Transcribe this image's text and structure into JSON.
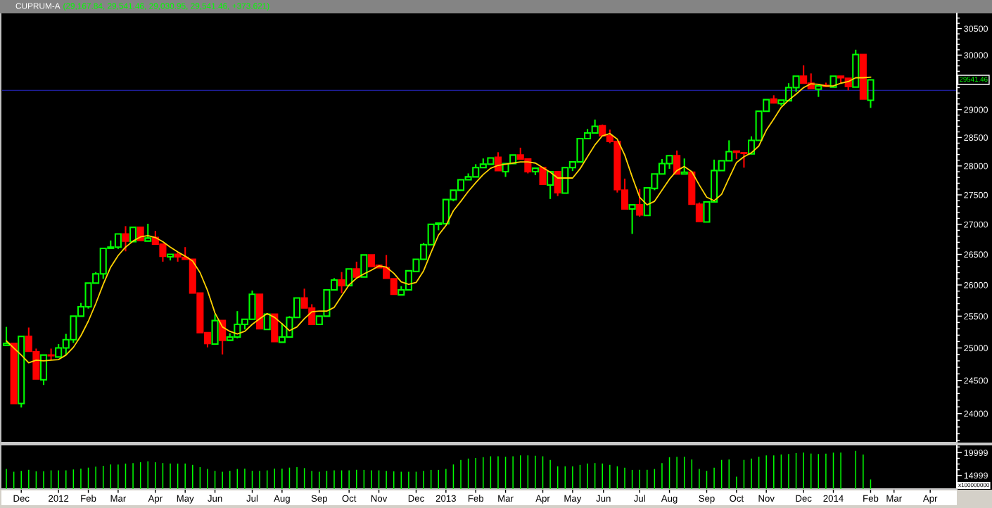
{
  "chart_data": [
    {
      "type": "candlestick",
      "title": "CUPRUM-A",
      "subtitle": "(29,167.84, 29,541.46, 29,030.95, 29,541.46, +373.621)",
      "x": [
        "2011-11-18",
        "2011-11-25",
        "2011-12-02",
        "2011-12-09",
        "2011-12-16",
        "2011-12-23",
        "2011-12-30",
        "2012-01-06",
        "2012-01-13",
        "2012-01-20",
        "2012-01-27",
        "2012-02-03",
        "2012-02-10",
        "2012-02-17",
        "2012-02-24",
        "2012-03-02",
        "2012-03-09",
        "2012-03-16",
        "2012-03-23",
        "2012-03-30",
        "2012-04-06",
        "2012-04-13",
        "2012-04-20",
        "2012-04-27",
        "2012-05-04",
        "2012-05-11",
        "2012-05-18",
        "2012-05-25",
        "2012-06-01",
        "2012-06-08",
        "2012-06-15",
        "2012-06-22",
        "2012-06-29",
        "2012-07-06",
        "2012-07-13",
        "2012-07-20",
        "2012-07-27",
        "2012-08-03",
        "2012-08-10",
        "2012-08-17",
        "2012-08-24",
        "2012-08-31",
        "2012-09-07",
        "2012-09-14",
        "2012-09-21",
        "2012-09-28",
        "2012-10-05",
        "2012-10-12",
        "2012-10-19",
        "2012-10-26",
        "2012-11-02",
        "2012-11-09",
        "2012-11-16",
        "2012-11-23",
        "2012-11-30",
        "2012-12-07",
        "2012-12-14",
        "2012-12-21",
        "2012-12-28",
        "2013-01-04",
        "2013-01-11",
        "2013-01-18",
        "2013-01-25",
        "2013-02-01",
        "2013-02-08",
        "2013-02-15",
        "2013-02-22",
        "2013-03-01",
        "2013-03-08",
        "2013-03-15",
        "2013-03-22",
        "2013-03-29",
        "2013-04-05",
        "2013-04-12",
        "2013-04-19",
        "2013-04-26",
        "2013-05-03",
        "2013-05-10",
        "2013-05-17",
        "2013-05-24",
        "2013-05-31",
        "2013-06-07",
        "2013-06-14",
        "2013-06-21",
        "2013-06-28",
        "2013-07-05",
        "2013-07-12",
        "2013-07-19",
        "2013-07-26",
        "2013-08-02",
        "2013-08-09",
        "2013-08-16",
        "2013-08-23",
        "2013-08-30",
        "2013-09-06",
        "2013-09-13",
        "2013-09-20",
        "2013-09-27",
        "2013-10-04",
        "2013-10-11",
        "2013-10-18",
        "2013-10-25",
        "2013-11-01",
        "2013-11-08",
        "2013-11-15",
        "2013-11-22",
        "2013-11-29",
        "2013-12-06",
        "2013-12-13",
        "2013-12-20",
        "2013-12-27",
        "2014-01-03",
        "2014-01-10",
        "2014-01-17",
        "2014-01-24",
        "2014-01-31",
        "2014-02-07"
      ],
      "ohlc": [
        [
          25040,
          25330,
          25040,
          25070
        ],
        [
          25070,
          25070,
          24150,
          24150
        ],
        [
          24150,
          25180,
          24090,
          25180
        ],
        [
          25180,
          25320,
          24950,
          24950
        ],
        [
          24940,
          24990,
          24520,
          24520
        ],
        [
          24510,
          24890,
          24430,
          24890
        ],
        [
          24890,
          24990,
          24820,
          24880
        ],
        [
          24860,
          25060,
          24860,
          25000
        ],
        [
          25000,
          25220,
          24890,
          25130
        ],
        [
          25130,
          25500,
          25080,
          25500
        ],
        [
          25500,
          25710,
          25500,
          25650
        ],
        [
          25650,
          26030,
          25620,
          26030
        ],
        [
          26030,
          26210,
          26030,
          26180
        ],
        [
          26180,
          26600,
          26100,
          26600
        ],
        [
          26600,
          26730,
          26600,
          26620
        ],
        [
          26620,
          26840,
          26590,
          26840
        ],
        [
          26840,
          26970,
          26550,
          26720
        ],
        [
          26710,
          26950,
          26710,
          26950
        ],
        [
          26950,
          26950,
          26730,
          26730
        ],
        [
          26720,
          27010,
          26720,
          26770
        ],
        [
          26780,
          26890,
          26670,
          26670
        ],
        [
          26670,
          26670,
          26380,
          26470
        ],
        [
          26460,
          26500,
          26400,
          26500
        ],
        [
          26500,
          26530,
          26380,
          26460
        ],
        [
          26450,
          26620,
          26420,
          26420
        ],
        [
          26420,
          26420,
          25870,
          25870
        ],
        [
          25870,
          25870,
          25240,
          25240
        ],
        [
          25240,
          25240,
          25010,
          25070
        ],
        [
          25060,
          25530,
          25060,
          25430
        ],
        [
          25430,
          25430,
          24900,
          25120
        ],
        [
          25120,
          25230,
          25120,
          25170
        ],
        [
          25170,
          25580,
          25150,
          25370
        ],
        [
          25370,
          25450,
          25290,
          25450
        ],
        [
          25450,
          25910,
          25450,
          25850
        ],
        [
          25850,
          25850,
          25300,
          25300
        ],
        [
          25290,
          25530,
          25290,
          25530
        ],
        [
          25530,
          25530,
          25100,
          25100
        ],
        [
          25090,
          25390,
          25090,
          25170
        ],
        [
          25170,
          25500,
          25170,
          25480
        ],
        [
          25480,
          25790,
          25480,
          25790
        ],
        [
          25790,
          25940,
          25630,
          25630
        ],
        [
          25630,
          25690,
          25370,
          25370
        ],
        [
          25370,
          25500,
          25370,
          25500
        ],
        [
          25500,
          25920,
          25500,
          25920
        ],
        [
          25920,
          26110,
          25920,
          26080
        ],
        [
          26080,
          26210,
          25870,
          25990
        ],
        [
          25990,
          26260,
          25990,
          26260
        ],
        [
          26260,
          26380,
          26130,
          26130
        ],
        [
          26130,
          26490,
          26130,
          26490
        ],
        [
          26490,
          26490,
          26300,
          26300
        ],
        [
          26320,
          26320,
          26280,
          26280
        ],
        [
          26280,
          26490,
          26110,
          26110
        ],
        [
          26100,
          26100,
          25850,
          25850
        ],
        [
          25840,
          25980,
          25840,
          25920
        ],
        [
          25920,
          26230,
          25920,
          26230
        ],
        [
          26220,
          26420,
          26220,
          26420
        ],
        [
          26420,
          26690,
          26420,
          26660
        ],
        [
          26660,
          27000,
          26660,
          27000
        ],
        [
          27000,
          27020,
          26900,
          27020
        ],
        [
          27010,
          27420,
          27010,
          27420
        ],
        [
          27420,
          27580,
          27390,
          27580
        ],
        [
          27580,
          27760,
          27580,
          27760
        ],
        [
          27760,
          27870,
          27760,
          27810
        ],
        [
          27810,
          28030,
          27810,
          27970
        ],
        [
          27970,
          28130,
          27970,
          28030
        ],
        [
          28030,
          28140,
          28030,
          28140
        ],
        [
          28150,
          28240,
          27920,
          27920
        ],
        [
          27900,
          28040,
          27810,
          28040
        ],
        [
          28040,
          28190,
          28040,
          28190
        ],
        [
          28190,
          28320,
          28120,
          28120
        ],
        [
          28120,
          28120,
          27870,
          27900
        ],
        [
          27900,
          27960,
          27840,
          27960
        ],
        [
          27970,
          27970,
          27680,
          27680
        ],
        [
          27670,
          27900,
          27430,
          27900
        ],
        [
          27900,
          27900,
          27480,
          27540
        ],
        [
          27530,
          27970,
          27530,
          27970
        ],
        [
          27970,
          28070,
          27910,
          28070
        ],
        [
          28070,
          28480,
          28070,
          28480
        ],
        [
          28480,
          28650,
          28480,
          28580
        ],
        [
          28580,
          28820,
          28580,
          28700
        ],
        [
          28710,
          28730,
          28530,
          28530
        ],
        [
          28530,
          28640,
          28400,
          28430
        ],
        [
          28430,
          28430,
          27540,
          27590
        ],
        [
          27580,
          27780,
          27260,
          27260
        ],
        [
          27260,
          27330,
          26840,
          27330
        ],
        [
          27330,
          27600,
          27130,
          27160
        ],
        [
          27150,
          27620,
          27150,
          27620
        ],
        [
          27610,
          27860,
          27580,
          27860
        ],
        [
          27860,
          28120,
          27860,
          28040
        ],
        [
          28040,
          28180,
          27950,
          28180
        ],
        [
          28180,
          28270,
          27860,
          27860
        ],
        [
          27860,
          28130,
          27860,
          27890
        ],
        [
          27890,
          27890,
          27340,
          27340
        ],
        [
          27340,
          27370,
          27050,
          27050
        ],
        [
          27040,
          27380,
          27040,
          27380
        ],
        [
          27380,
          28110,
          27380,
          27920
        ],
        [
          27920,
          28090,
          27920,
          28090
        ],
        [
          28090,
          28450,
          28090,
          28250
        ],
        [
          28260,
          28260,
          28120,
          28240
        ],
        [
          28230,
          28230,
          27970,
          28220
        ],
        [
          28210,
          28520,
          28210,
          28450
        ],
        [
          28450,
          28970,
          28450,
          28970
        ],
        [
          28970,
          29180,
          28970,
          29180
        ],
        [
          29190,
          29260,
          29110,
          29120
        ],
        [
          29110,
          29170,
          29070,
          29170
        ],
        [
          29160,
          29480,
          29160,
          29400
        ],
        [
          29400,
          29610,
          29320,
          29610
        ],
        [
          29610,
          29810,
          29480,
          29480
        ],
        [
          29480,
          29660,
          29380,
          29380
        ],
        [
          29370,
          29430,
          29230,
          29430
        ],
        [
          29440,
          29490,
          29410,
          29420
        ],
        [
          29410,
          29610,
          29410,
          29610
        ],
        [
          29610,
          29610,
          29480,
          29580
        ],
        [
          29570,
          29570,
          29350,
          29420
        ],
        [
          29410,
          30100,
          29410,
          30010
        ],
        [
          30010,
          30010,
          29190,
          29190
        ],
        [
          29167.84,
          29541.46,
          29030.95,
          29541.46
        ]
      ],
      "colors": [
        "#00ff00",
        "#ff0000",
        "#00ff00",
        "#ff0000",
        "#ff0000",
        "#00ff00",
        "#ff0000",
        "#00ff00",
        "#00ff00",
        "#00ff00",
        "#00ff00",
        "#00ff00",
        "#00ff00",
        "#00ff00",
        "#00ff00",
        "#00ff00",
        "#ff0000",
        "#00ff00",
        "#ff0000",
        "#00ff00",
        "#ff0000",
        "#ff0000",
        "#00ff00",
        "#ff0000",
        "#ff0000",
        "#ff0000",
        "#ff0000",
        "#ff0000",
        "#00ff00",
        "#ff0000",
        "#00ff00",
        "#00ff00",
        "#00ff00",
        "#00ff00",
        "#ff0000",
        "#00ff00",
        "#ff0000",
        "#00ff00",
        "#00ff00",
        "#00ff00",
        "#ff0000",
        "#ff0000",
        "#00ff00",
        "#00ff00",
        "#00ff00",
        "#ff0000",
        "#00ff00",
        "#ff0000",
        "#00ff00",
        "#ff0000",
        "#ff0000",
        "#ff0000",
        "#ff0000",
        "#00ff00",
        "#00ff00",
        "#00ff00",
        "#00ff00",
        "#00ff00",
        "#00ff00",
        "#00ff00",
        "#00ff00",
        "#00ff00",
        "#00ff00",
        "#00ff00",
        "#00ff00",
        "#00ff00",
        "#ff0000",
        "#00ff00",
        "#00ff00",
        "#ff0000",
        "#ff0000",
        "#00ff00",
        "#ff0000",
        "#00ff00",
        "#ff0000",
        "#00ff00",
        "#00ff00",
        "#00ff00",
        "#00ff00",
        "#00ff00",
        "#ff0000",
        "#ff0000",
        "#ff0000",
        "#ff0000",
        "#00ff00",
        "#ff0000",
        "#00ff00",
        "#00ff00",
        "#00ff00",
        "#00ff00",
        "#ff0000",
        "#00ff00",
        "#ff0000",
        "#ff0000",
        "#00ff00",
        "#00ff00",
        "#00ff00",
        "#00ff00",
        "#ff0000",
        "#ff0000",
        "#00ff00",
        "#00ff00",
        "#00ff00",
        "#ff0000",
        "#00ff00",
        "#00ff00",
        "#00ff00",
        "#ff0000",
        "#ff0000",
        "#00ff00",
        "#ff0000",
        "#00ff00",
        "#ff0000",
        "#ff0000",
        "#00ff00",
        "#ff0000",
        "#00ff00"
      ],
      "series": [
        {
          "type": "line",
          "color": "#ffd200",
          "values": [
            25110,
            25000,
            24890,
            24770,
            24810,
            24800,
            24810,
            24820,
            24890,
            25010,
            25190,
            25420,
            25700,
            26010,
            26290,
            26480,
            26620,
            26720,
            26790,
            26810,
            26780,
            26710,
            26620,
            26540,
            26470,
            26390,
            26200,
            25910,
            25550,
            25330,
            25260,
            25220,
            25260,
            25370,
            25460,
            25540,
            25480,
            25380,
            25270,
            25330,
            25460,
            25570,
            25580,
            25580,
            25640,
            25820,
            26000,
            26110,
            26180,
            26240,
            26310,
            26290,
            26190,
            26050,
            26010,
            26040,
            26230,
            26530,
            26820,
            26980,
            27230,
            27390,
            27560,
            27710,
            27850,
            27960,
            28010,
            28030,
            28050,
            28070,
            28070,
            28050,
            27970,
            27890,
            27790,
            27790,
            27790,
            27950,
            28160,
            28370,
            28530,
            28570,
            28470,
            28190,
            27810,
            27460,
            27330,
            27390,
            27580,
            27770,
            27920,
            27990,
            27900,
            27670,
            27460,
            27400,
            27510,
            27790,
            28060,
            28160,
            28230,
            28350,
            28630,
            28830,
            29040,
            29170,
            29280,
            29400,
            29470,
            29460,
            29430,
            29430,
            29480,
            29510,
            29580,
            29580,
            29590
          ]
        }
      ],
      "log": true,
      "ylim": [
        23570,
        30790
      ],
      "yticks": [
        {
          "value": 23600,
          "label": null
        },
        {
          "value": 23700,
          "label": null
        },
        {
          "value": 23800,
          "label": null
        },
        {
          "value": 23900,
          "label": null
        },
        24000,
        {
          "value": 24100,
          "label": null
        },
        {
          "value": 24200,
          "label": null
        },
        {
          "value": 24300,
          "label": null
        },
        {
          "value": 24400,
          "label": null
        },
        24500,
        {
          "value": 24600,
          "label": null
        },
        {
          "value": 24700,
          "label": null
        },
        {
          "value": 24800,
          "label": null
        },
        {
          "value": 24900,
          "label": null
        },
        25000,
        {
          "value": 25100,
          "label": null
        },
        {
          "value": 25200,
          "label": null
        },
        {
          "value": 25300,
          "label": null
        },
        {
          "value": 25400,
          "label": null
        },
        25500,
        {
          "value": 25600,
          "label": null
        },
        {
          "value": 25700,
          "label": null
        },
        {
          "value": 25800,
          "label": null
        },
        {
          "value": 25900,
          "label": null
        },
        26000,
        {
          "value": 26100,
          "label": null
        },
        {
          "value": 26200,
          "label": null
        },
        {
          "value": 26300,
          "label": null
        },
        {
          "value": 26400,
          "label": null
        },
        26500,
        {
          "value": 26600,
          "label": null
        },
        {
          "value": 26700,
          "label": null
        },
        {
          "value": 26800,
          "label": null
        },
        {
          "value": 26900,
          "label": null
        },
        27000,
        {
          "value": 27100,
          "label": null
        },
        {
          "value": 27200,
          "label": null
        },
        {
          "value": 27300,
          "label": null
        },
        {
          "value": 27400,
          "label": null
        },
        27500,
        {
          "value": 27600,
          "label": null
        },
        {
          "value": 27700,
          "label": null
        },
        {
          "value": 27800,
          "label": null
        },
        {
          "value": 27900,
          "label": null
        },
        28000,
        {
          "value": 28100,
          "label": null
        },
        {
          "value": 28200,
          "label": null
        },
        {
          "value": 28300,
          "label": null
        },
        {
          "value": 28400,
          "label": null
        },
        28500,
        {
          "value": 28600,
          "label": null
        },
        {
          "value": 28700,
          "label": null
        },
        {
          "value": 28800,
          "label": null
        },
        {
          "value": 28900,
          "label": null
        },
        29000,
        {
          "value": 29100,
          "label": null
        },
        {
          "value": 29200,
          "label": null
        },
        {
          "value": 29300,
          "label": null
        },
        {
          "value": 29400,
          "label": null
        },
        {
          "value": 29500,
          "label": null
        },
        {
          "value": 29600,
          "label": null
        },
        {
          "value": 29700,
          "label": null
        },
        {
          "value": 29800,
          "label": null
        },
        {
          "value": 29900,
          "label": null
        },
        30000,
        {
          "value": 30100,
          "label": null
        },
        {
          "value": 30200,
          "label": null
        },
        {
          "value": 30300,
          "label": null
        },
        {
          "value": 30400,
          "label": null
        },
        30500,
        {
          "value": 30600,
          "label": null
        },
        {
          "value": 30700,
          "label": null
        }
      ],
      "xlim": [
        "2011-11-14",
        "2014-04-29"
      ],
      "tick_labels": "y",
      "ref_lines": [
        {
          "axis": "y",
          "value": 29350,
          "color": "#2020a0"
        }
      ],
      "annotations": [
        "29541.46"
      ]
    },
    {
      "type": "bar",
      "color": "#00ff00",
      "x": [
        "2011-11-18",
        "2011-11-25",
        "2011-12-02",
        "2011-12-09",
        "2011-12-16",
        "2011-12-23",
        "2011-12-30",
        "2012-01-06",
        "2012-01-13",
        "2012-01-20",
        "2012-01-27",
        "2012-02-03",
        "2012-02-10",
        "2012-02-17",
        "2012-02-24",
        "2012-03-02",
        "2012-03-09",
        "2012-03-16",
        "2012-03-23",
        "2012-03-30",
        "2012-04-06",
        "2012-04-13",
        "2012-04-20",
        "2012-04-27",
        "2012-05-04",
        "2012-05-11",
        "2012-05-18",
        "2012-05-25",
        "2012-06-01",
        "2012-06-08",
        "2012-06-15",
        "2012-06-22",
        "2012-06-29",
        "2012-07-06",
        "2012-07-13",
        "2012-07-20",
        "2012-07-27",
        "2012-08-03",
        "2012-08-10",
        "2012-08-17",
        "2012-08-24",
        "2012-08-31",
        "2012-09-07",
        "2012-09-14",
        "2012-09-21",
        "2012-09-28",
        "2012-10-05",
        "2012-10-12",
        "2012-10-19",
        "2012-10-26",
        "2012-11-02",
        "2012-11-09",
        "2012-11-16",
        "2012-11-23",
        "2012-11-30",
        "2012-12-07",
        "2012-12-14",
        "2012-12-21",
        "2012-12-28",
        "2013-01-04",
        "2013-01-11",
        "2013-01-18",
        "2013-01-25",
        "2013-02-01",
        "2013-02-08",
        "2013-02-15",
        "2013-02-22",
        "2013-03-01",
        "2013-03-08",
        "2013-03-15",
        "2013-03-22",
        "2013-03-29",
        "2013-04-05",
        "2013-04-12",
        "2013-04-19",
        "2013-04-26",
        "2013-05-03",
        "2013-05-10",
        "2013-05-17",
        "2013-05-24",
        "2013-05-31",
        "2013-06-07",
        "2013-06-14",
        "2013-06-21",
        "2013-06-28",
        "2013-07-05",
        "2013-07-12",
        "2013-07-19",
        "2013-07-26",
        "2013-08-02",
        "2013-08-09",
        "2013-08-16",
        "2013-08-23",
        "2013-08-30",
        "2013-09-06",
        "2013-09-13",
        "2013-09-20",
        "2013-09-27",
        "2013-10-04",
        "2013-10-11",
        "2013-10-18",
        "2013-10-25",
        "2013-11-01",
        "2013-11-08",
        "2013-11-15",
        "2013-11-22",
        "2013-11-29",
        "2013-12-06",
        "2013-12-13",
        "2013-12-20",
        "2013-12-27",
        "2014-01-03",
        "2014-01-10",
        "2014-01-17",
        "2014-01-24",
        "2014-01-31",
        "2014-02-07"
      ],
      "values": [
        16400,
        15800,
        16000,
        16200,
        15900,
        15900,
        16100,
        16100,
        16100,
        16300,
        16500,
        16700,
        16900,
        17100,
        17400,
        17400,
        17600,
        17700,
        17900,
        18100,
        17900,
        17700,
        17600,
        17600,
        17600,
        17300,
        16800,
        16400,
        16000,
        15800,
        16000,
        16400,
        16500,
        16000,
        16000,
        16100,
        16500,
        16500,
        16700,
        16800,
        16600,
        16000,
        15800,
        16000,
        16100,
        16100,
        16100,
        16200,
        16200,
        16100,
        16100,
        16000,
        15900,
        15800,
        15800,
        15800,
        16000,
        16200,
        16200,
        16400,
        17400,
        18400,
        18700,
        18800,
        19000,
        19200,
        19200,
        19100,
        19200,
        19400,
        19400,
        19300,
        19200,
        18400,
        17000,
        17000,
        17000,
        17300,
        17600,
        17700,
        17600,
        17300,
        17000,
        16700,
        16200,
        16200,
        16200,
        16400,
        17700,
        19000,
        19100,
        19100,
        18500,
        16400,
        16000,
        16700,
        18400,
        18500,
        14700,
        18400,
        18700,
        19100,
        19400,
        19400,
        19600,
        19700,
        19900,
        20000,
        19800,
        19700,
        19800,
        20000,
        20000,
        null,
        20400,
        19600,
        14100
      ],
      "ylim": [
        12000,
        21600
      ],
      "yticks": [
        14999,
        {
          "value": 16249,
          "label": null
        },
        {
          "value": 17499,
          "label": null
        },
        {
          "value": 18749,
          "label": null
        },
        19999,
        {
          "value": 21249,
          "label": null
        }
      ],
      "ylabel": "x100000000",
      "xlim": [
        "2011-11-14",
        "2014-04-29"
      ],
      "xticks": [
        {
          "value": "2011-12-02",
          "label": "Dec"
        },
        {
          "value": "2012-01-06",
          "label": "2012"
        },
        {
          "value": "2012-02-03",
          "label": "Feb"
        },
        {
          "value": "2012-03-02",
          "label": "Mar"
        },
        {
          "value": "2012-04-06",
          "label": "Apr"
        },
        {
          "value": "2012-05-04",
          "label": "May"
        },
        {
          "value": "2012-06-01",
          "label": "Jun"
        },
        {
          "value": "2012-07-06",
          "label": "Jul"
        },
        {
          "value": "2012-08-03",
          "label": "Aug"
        },
        {
          "value": "2012-09-07",
          "label": "Sep"
        },
        {
          "value": "2012-10-05",
          "label": "Oct"
        },
        {
          "value": "2012-11-02",
          "label": "Nov"
        },
        {
          "value": "2012-12-07",
          "label": "Dec"
        },
        {
          "value": "2013-01-04",
          "label": "2013"
        },
        {
          "value": "2013-02-01",
          "label": "Feb"
        },
        {
          "value": "2013-03-01",
          "label": "Mar"
        },
        {
          "value": "2013-04-05",
          "label": "Apr"
        },
        {
          "value": "2013-05-03",
          "label": "May"
        },
        {
          "value": "2013-06-01",
          "label": "Jun"
        },
        {
          "value": "2013-07-05",
          "label": "Jul"
        },
        {
          "value": "2013-08-02",
          "label": "Aug"
        },
        {
          "value": "2013-09-06",
          "label": "Sep"
        },
        {
          "value": "2013-10-04",
          "label": "Oct"
        },
        {
          "value": "2013-11-01",
          "label": "Nov"
        },
        {
          "value": "2013-12-06",
          "label": "Dec"
        },
        {
          "value": "2014-01-03",
          "label": "2014"
        },
        {
          "value": "2014-02-07",
          "label": "Feb"
        },
        {
          "value": "2014-03-01",
          "label": "Mar"
        },
        {
          "value": "2014-04-04",
          "label": "Apr"
        }
      ]
    }
  ]
}
